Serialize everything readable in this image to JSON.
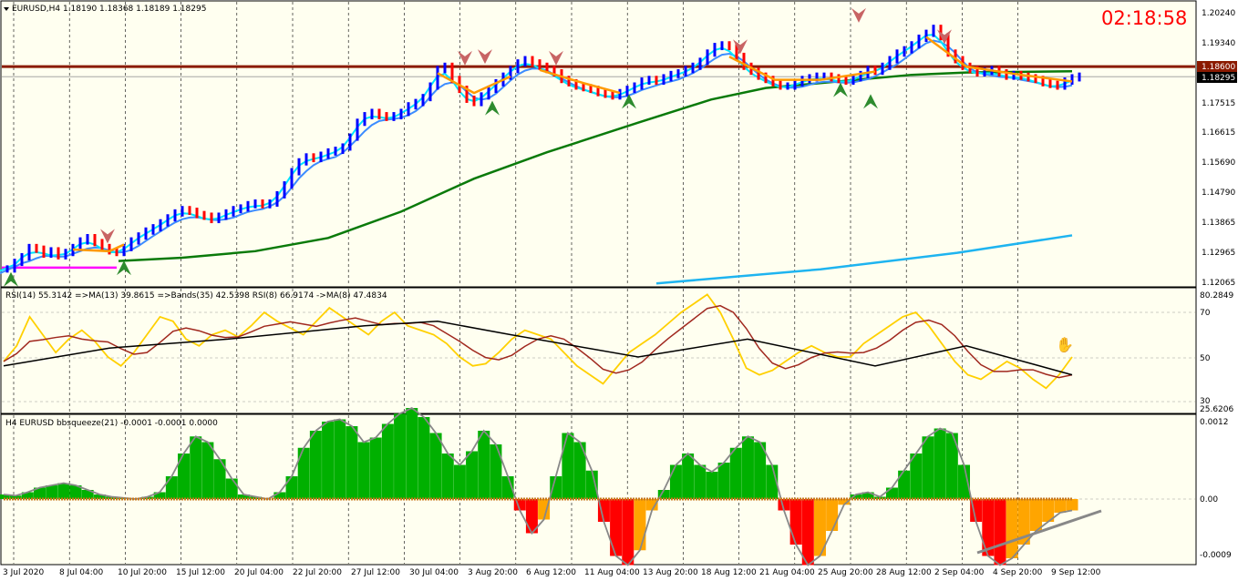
{
  "colors": {
    "background": "#fffff0",
    "bull_candle": "#0000ff",
    "bear_candle": "#ff0000",
    "grid": "#000000",
    "resistance_line": "#8b1a00",
    "ema_fast": "#00e5ff",
    "ema_slow": "#3c8cff",
    "sma_long": "#0a7a0a",
    "sma_200": "#1eb4f0",
    "orange_ma": "#ff9a00",
    "magenta_line": "#ff00ff",
    "rsi_line": "#ffd000",
    "rsi_ma": "#a0281e",
    "rsi_bands": "#000000",
    "squeeze_up": "#00b000",
    "squeeze_down_red": "#ff0000",
    "squeeze_down_orange": "#ffa500",
    "squeeze_dots": "#c8781e",
    "trendline": "#888888",
    "clock_color": "#ff0000"
  },
  "header": {
    "symbol_info": "EURUSD,H4  1.18190 1.18368 1.18189 1.18295",
    "clock": "02:18:58"
  },
  "price_panel": {
    "price_labels": [
      "1.20240",
      "1.19340",
      "1.18600",
      "1.18295",
      "1.17515",
      "1.16615",
      "1.15690",
      "1.14790",
      "1.13865",
      "1.12965",
      "1.12065"
    ],
    "resistance_badge": "1.18600",
    "current_badge": "1.18295"
  },
  "rsi_panel": {
    "title": "RSI(14) 55.3142  =>MA(13) 39.8615  =>Bands(35) 42.5398  RSI(8) 66.9174  ->MA(8) 47.4834",
    "levels": [
      "80.2849",
      "70",
      "50",
      "30",
      "25.6206"
    ]
  },
  "squeeze_panel": {
    "title": "H4 EURUSD bbsqueeze(21) -0.0001 -0.0001 0.0000",
    "levels": [
      "0.0012",
      "0.00",
      "-0.0009"
    ]
  },
  "time_axis": [
    "3 Jul 2020",
    "8 Jul 04:00",
    "10 Jul 20:00",
    "15 Jul 12:00",
    "20 Jul 04:00",
    "22 Jul 20:00",
    "27 Jul 12:00",
    "30 Jul 04:00",
    "3 Aug 20:00",
    "6 Aug 12:00",
    "11 Aug 04:00",
    "13 Aug 20:00",
    "18 Aug 12:00",
    "21 Aug 04:00",
    "25 Aug 20:00",
    "28 Aug 12:00",
    "2 Sep 04:00",
    "4 Sep 20:00",
    "9 Sep 12:00"
  ],
  "chart_data": {
    "type": "line",
    "title": "",
    "close_path": [
      [
        0,
        1.1245
      ],
      [
        8,
        1.1265
      ],
      [
        16,
        1.1282
      ],
      [
        24,
        1.131
      ],
      [
        32,
        1.1305
      ],
      [
        40,
        1.129
      ],
      [
        48,
        1.13
      ],
      [
        56,
        1.1285
      ],
      [
        64,
        1.1295
      ],
      [
        72,
        1.131
      ],
      [
        80,
        1.133
      ],
      [
        88,
        1.134
      ],
      [
        96,
        1.1325
      ],
      [
        104,
        1.131
      ],
      [
        112,
        1.13
      ],
      [
        120,
        1.1295
      ],
      [
        128,
        1.131
      ],
      [
        136,
        1.133
      ],
      [
        144,
        1.1345
      ],
      [
        152,
        1.136
      ],
      [
        160,
        1.137
      ],
      [
        168,
        1.1385
      ],
      [
        176,
        1.14
      ],
      [
        184,
        1.1415
      ],
      [
        192,
        1.1425
      ],
      [
        200,
        1.142
      ],
      [
        208,
        1.141
      ],
      [
        216,
        1.1405
      ],
      [
        224,
        1.1395
      ],
      [
        232,
        1.1405
      ],
      [
        240,
        1.1415
      ],
      [
        248,
        1.1425
      ],
      [
        256,
        1.143
      ],
      [
        264,
        1.144
      ],
      [
        272,
        1.1445
      ],
      [
        280,
        1.144
      ],
      [
        288,
        1.1445
      ],
      [
        296,
        1.147
      ],
      [
        304,
        1.15
      ],
      [
        312,
        1.154
      ],
      [
        320,
        1.157
      ],
      [
        328,
        1.1585
      ],
      [
        336,
        1.158
      ],
      [
        344,
        1.159
      ],
      [
        352,
        1.16
      ],
      [
        360,
        1.1605
      ],
      [
        368,
        1.1615
      ],
      [
        376,
        1.1645
      ],
      [
        384,
        1.169
      ],
      [
        392,
        1.171
      ],
      [
        400,
        1.172
      ],
      [
        408,
        1.171
      ],
      [
        416,
        1.1705
      ],
      [
        424,
        1.171
      ],
      [
        432,
        1.172
      ],
      [
        440,
        1.174
      ],
      [
        448,
        1.175
      ],
      [
        456,
        1.1765
      ],
      [
        464,
        1.18
      ],
      [
        472,
        1.185
      ],
      [
        480,
        1.186
      ],
      [
        488,
        1.182
      ],
      [
        496,
        1.179
      ],
      [
        504,
        1.176
      ],
      [
        512,
        1.175
      ],
      [
        520,
        1.177
      ],
      [
        528,
        1.179
      ],
      [
        536,
        1.181
      ],
      [
        544,
        1.183
      ],
      [
        552,
        1.185
      ],
      [
        560,
        1.187
      ],
      [
        568,
        1.188
      ],
      [
        576,
        1.187
      ],
      [
        584,
        1.186
      ],
      [
        592,
        1.185
      ],
      [
        600,
        1.184
      ],
      [
        608,
        1.182
      ],
      [
        616,
        1.181
      ],
      [
        624,
        1.18
      ],
      [
        632,
        1.1795
      ],
      [
        640,
        1.179
      ],
      [
        648,
        1.178
      ],
      [
        656,
        1.1775
      ],
      [
        664,
        1.177
      ],
      [
        672,
        1.178
      ],
      [
        680,
        1.179
      ],
      [
        688,
        1.18
      ],
      [
        696,
        1.1815
      ],
      [
        704,
        1.182
      ],
      [
        712,
        1.1815
      ],
      [
        720,
        1.1825
      ],
      [
        728,
        1.1835
      ],
      [
        736,
        1.184
      ],
      [
        744,
        1.185
      ],
      [
        752,
        1.186
      ],
      [
        760,
        1.1875
      ],
      [
        768,
        1.19
      ],
      [
        776,
        1.192
      ],
      [
        784,
        1.1925
      ],
      [
        792,
        1.192
      ],
      [
        800,
        1.189
      ],
      [
        808,
        1.186
      ],
      [
        816,
        1.1845
      ],
      [
        824,
        1.183
      ],
      [
        832,
        1.182
      ],
      [
        840,
        1.181
      ],
      [
        848,
        1.18
      ],
      [
        856,
        1.18
      ],
      [
        864,
        1.181
      ],
      [
        872,
        1.182
      ],
      [
        880,
        1.1825
      ],
      [
        888,
        1.183
      ],
      [
        896,
        1.183
      ],
      [
        904,
        1.1825
      ],
      [
        912,
        1.182
      ],
      [
        920,
        1.1815
      ],
      [
        928,
        1.1825
      ],
      [
        936,
        1.1835
      ],
      [
        944,
        1.185
      ],
      [
        952,
        1.1845
      ],
      [
        960,
        1.186
      ],
      [
        968,
        1.188
      ],
      [
        976,
        1.19
      ],
      [
        984,
        1.191
      ],
      [
        992,
        1.1925
      ],
      [
        1000,
        1.1945
      ],
      [
        1008,
        1.196
      ],
      [
        1016,
        1.1975
      ],
      [
        1024,
        1.195
      ],
      [
        1032,
        1.19
      ],
      [
        1040,
        1.188
      ],
      [
        1048,
        1.186
      ],
      [
        1056,
        1.185
      ],
      [
        1064,
        1.184
      ],
      [
        1072,
        1.1845
      ],
      [
        1080,
        1.185
      ],
      [
        1088,
        1.184
      ],
      [
        1096,
        1.183
      ],
      [
        1104,
        1.1835
      ],
      [
        1112,
        1.183
      ],
      [
        1120,
        1.1825
      ],
      [
        1128,
        1.182
      ],
      [
        1136,
        1.181
      ],
      [
        1144,
        1.1805
      ],
      [
        1152,
        1.18
      ],
      [
        1160,
        1.1815
      ],
      [
        1168,
        1.1825
      ],
      [
        1176,
        1.183
      ]
    ]
  }
}
